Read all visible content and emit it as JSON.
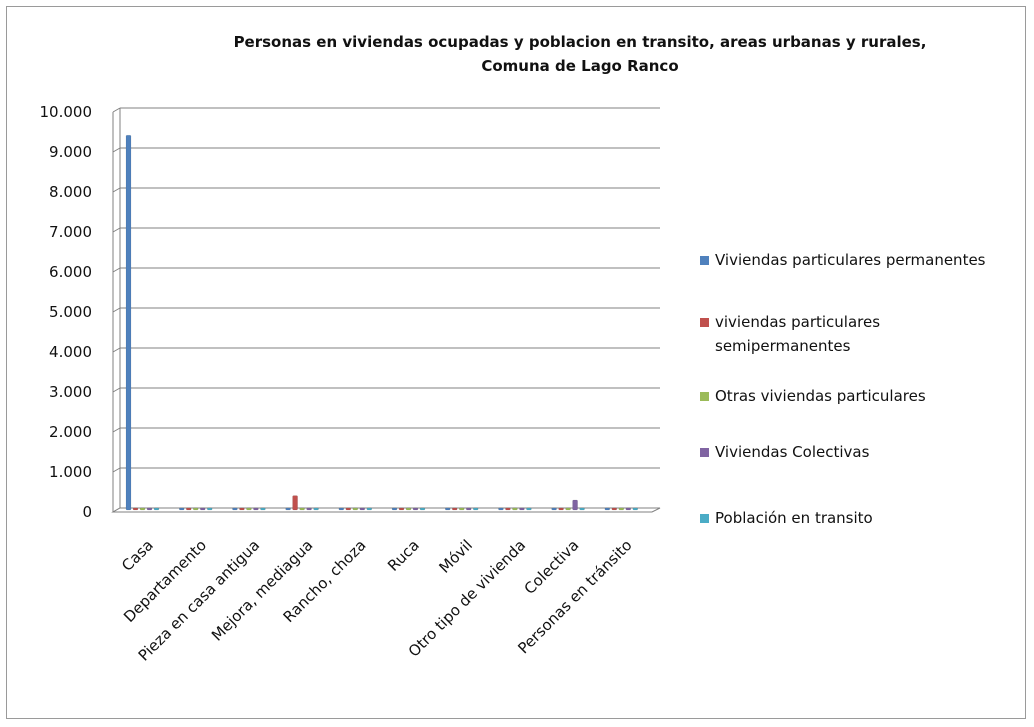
{
  "chart_data": {
    "type": "bar",
    "title_lines": [
      "Personas en viviendas ocupadas y poblacion en transito, areas urbanas y rurales,",
      "Comuna de Lago Ranco"
    ],
    "categories": [
      "Casa",
      "Departamento",
      "Pieza en casa antigua",
      "Mejora, mediagua",
      "Rancho, choza",
      "Ruca",
      "Móvil",
      "Otro tipo de vivienda",
      "Colectiva",
      "Personas en tránsito"
    ],
    "series": [
      {
        "name": "Viviendas particulares permanentes",
        "color": "#4f81bd",
        "values": [
          9370,
          10,
          30,
          0,
          0,
          0,
          0,
          0,
          0,
          0
        ]
      },
      {
        "name": "viviendas particulares semipermanentes",
        "color": "#c0504d",
        "values": [
          0,
          0,
          0,
          360,
          40,
          0,
          0,
          0,
          0,
          0
        ]
      },
      {
        "name": "Otras viviendas particulares",
        "color": "#9bbb59",
        "values": [
          0,
          0,
          0,
          0,
          0,
          0,
          0,
          10,
          0,
          0
        ]
      },
      {
        "name": "Viviendas Colectivas",
        "color": "#8064a2",
        "values": [
          0,
          0,
          0,
          0,
          0,
          0,
          0,
          0,
          250,
          0
        ]
      },
      {
        "name": "Población en transito",
        "color": "#4bacc6",
        "values": [
          0,
          0,
          0,
          0,
          0,
          0,
          0,
          0,
          0,
          20
        ]
      }
    ],
    "y_ticks": [
      "0",
      "1.000",
      "2.000",
      "3.000",
      "4.000",
      "5.000",
      "6.000",
      "7.000",
      "8.000",
      "9.000",
      "10.000"
    ],
    "ylim": [
      0,
      10000
    ],
    "grid": true,
    "legend_position": "right"
  }
}
